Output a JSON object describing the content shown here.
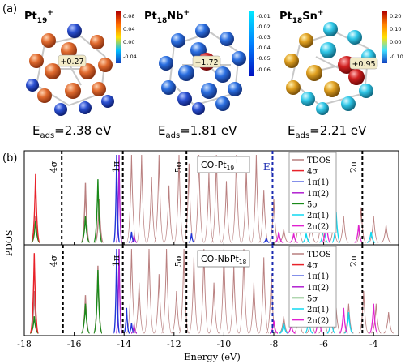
{
  "panel_a": {
    "label": "(a)",
    "clusters": [
      {
        "formula_main": "Pt",
        "formula_sub": "19",
        "formula_sup": "+",
        "formula_main2": "",
        "formula_sub2": "",
        "charge_label": "+0.27",
        "eads_prefix": "E",
        "eads_sub": "ads",
        "eads_value": "=2.38 eV",
        "colorbar_ticks": [
          "0.08",
          "0.04",
          "0.00",
          "-0.04"
        ],
        "colorbar_colors": [
          "#b00000",
          "#ff6a00",
          "#ffe000",
          "#00c0ff",
          "#1040c0"
        ],
        "atom_colors": [
          "#e06a2e",
          "#2a4fd0"
        ]
      },
      {
        "formula_main": "Pt",
        "formula_sub": "18",
        "formula_sup": "+",
        "formula_main2": "Nb",
        "formula_sub2": "",
        "charge_label": "+1.72",
        "eads_prefix": "E",
        "eads_sub": "ads",
        "eads_value": "=1.81 eV",
        "colorbar_ticks": [
          "-0.01",
          "-0.02",
          "-0.03",
          "-0.04",
          "-0.05",
          "-0.06"
        ],
        "colorbar_colors": [
          "#00e8ff",
          "#0080ff",
          "#0010c0"
        ],
        "atom_colors": [
          "#2a6ee0",
          "#1a2aa0"
        ]
      },
      {
        "formula_main": "Pt",
        "formula_sub": "18",
        "formula_sup": "+",
        "formula_main2": "Sn",
        "formula_sub2": "",
        "charge_label": "+0.95",
        "eads_prefix": "E",
        "eads_sub": "ads",
        "eads_value": "=2.21 eV",
        "colorbar_ticks": [
          "0.20",
          "0.10",
          "0.00",
          "-0.10"
        ],
        "colorbar_colors": [
          "#b00000",
          "#ff8000",
          "#ffe000",
          "#40e0ff",
          "#1040c0"
        ],
        "atom_colors": [
          "#e0a020",
          "#30c8e8"
        ]
      }
    ]
  },
  "panel_b": {
    "label": "(b)",
    "ylabel": "PDOS",
    "xlabel": "Energy (eV)"
  },
  "chart_data": {
    "type": "line",
    "xlim": [
      -18,
      -3
    ],
    "xticks": [
      -18,
      -16,
      -14,
      -12,
      -10,
      -8,
      -6,
      -4
    ],
    "xtick_labels": [
      "-18",
      "-16",
      "-14",
      "-12",
      "-10",
      "-8",
      "-6",
      "-4"
    ],
    "subplots": [
      {
        "name": "CO-Pt19+",
        "system_label_main": "CO-Pt",
        "system_label_sub": "19",
        "system_label_sup": "+",
        "legend": [
          "TDOS",
          "4σ",
          "1π(1)",
          "1π(2)",
          "5σ",
          "2π(1)",
          "2π(2)"
        ],
        "legend_colors": [
          "#b97f7f",
          "#e8222a",
          "#2034d8",
          "#b020d0",
          "#1a8a1a",
          "#10d8f0",
          "#e020d0"
        ],
        "annotations": [
          {
            "text": "4σ",
            "x": -16.5
          },
          {
            "text": "1π",
            "x": -14.0
          },
          {
            "text": "5σ",
            "x": -11.5
          },
          {
            "text": "2π",
            "x": -4.5
          },
          {
            "text": "E",
            "sub": "f",
            "x": -8.1
          }
        ],
        "dashed_lines_x": [
          -16.5,
          -14.05,
          -11.5,
          -8.05,
          -4.45
        ],
        "peaks": {
          "4σ": [
            {
              "x": -17.55,
              "h": 0.78
            }
          ],
          "4σ_tdos": [
            {
              "x": -17.55,
              "h": 0.3
            },
            {
              "x": -15.55,
              "h": 0.68
            },
            {
              "x": -15.0,
              "h": 0.5
            }
          ],
          "5σ": [
            {
              "x": -17.55,
              "h": 0.25
            },
            {
              "x": -15.55,
              "h": 0.3
            },
            {
              "x": -15.05,
              "h": 0.72
            }
          ],
          "1π(1)": [
            {
              "x": -14.3,
              "h": 1.0
            },
            {
              "x": -13.7,
              "h": 0.12
            },
            {
              "x": -11.3,
              "h": 0.1
            },
            {
              "x": -8.3,
              "h": 0.05
            }
          ],
          "1π(2)": [
            {
              "x": -14.2,
              "h": 1.0
            },
            {
              "x": -13.6,
              "h": 0.08
            }
          ],
          "2π(1)": [
            {
              "x": -6.7,
              "h": 0.1
            },
            {
              "x": -6.0,
              "h": 0.25
            },
            {
              "x": -5.5,
              "h": 0.35
            },
            {
              "x": -4.1,
              "h": 0.12
            }
          ],
          "2π(2)": [
            {
              "x": -7.8,
              "h": 0.12
            },
            {
              "x": -7.2,
              "h": 0.1
            },
            {
              "x": -5.9,
              "h": 0.3
            },
            {
              "x": -4.6,
              "h": 0.2
            }
          ],
          "TDOS": [
            {
              "x": -13.7,
              "h": 1.0
            },
            {
              "x": -13.3,
              "h": 1.0
            },
            {
              "x": -12.9,
              "h": 0.75
            },
            {
              "x": -12.6,
              "h": 1.0
            },
            {
              "x": -12.2,
              "h": 0.65
            },
            {
              "x": -11.8,
              "h": 1.0
            },
            {
              "x": -11.4,
              "h": 0.9
            },
            {
              "x": -11.0,
              "h": 1.0
            },
            {
              "x": -10.6,
              "h": 0.8
            },
            {
              "x": -10.3,
              "h": 1.0
            },
            {
              "x": -9.9,
              "h": 0.7
            },
            {
              "x": -9.5,
              "h": 1.0
            },
            {
              "x": -9.1,
              "h": 0.85
            },
            {
              "x": -8.7,
              "h": 1.0
            },
            {
              "x": -8.4,
              "h": 0.6
            },
            {
              "x": -8.0,
              "h": 0.5
            },
            {
              "x": -7.6,
              "h": 0.15
            },
            {
              "x": -7.0,
              "h": 0.3
            },
            {
              "x": -6.5,
              "h": 0.2
            },
            {
              "x": -6.1,
              "h": 0.35
            },
            {
              "x": -5.6,
              "h": 0.25
            },
            {
              "x": -5.2,
              "h": 0.3
            },
            {
              "x": -4.5,
              "h": 0.4
            },
            {
              "x": -4.0,
              "h": 0.3
            },
            {
              "x": -3.5,
              "h": 0.2
            }
          ]
        }
      },
      {
        "name": "CO-NbPt18+",
        "system_label_main": "CO-NbPt",
        "system_label_sub": "18",
        "system_label_sup": "+",
        "legend": [
          "TDOS",
          "4σ",
          "1π(1)",
          "1π(2)",
          "5σ",
          "2π(1)",
          "2π(2)"
        ],
        "legend_colors": [
          "#b97f7f",
          "#e8222a",
          "#2034d8",
          "#b020d0",
          "#1a8a1a",
          "#10d8f0",
          "#e020d0"
        ],
        "annotations": [
          {
            "text": "4σ",
            "x": -16.5
          },
          {
            "text": "1π",
            "x": -14.0
          },
          {
            "text": "5σ",
            "x": -11.5
          },
          {
            "text": "2π",
            "x": -4.5
          }
        ],
        "dashed_lines_x": [
          -16.45,
          -14.05,
          -11.5,
          -8.05,
          -4.45
        ],
        "peaks": {
          "4σ": [
            {
              "x": -17.6,
              "h": 0.95
            }
          ],
          "4σ_tdos": [
            {
              "x": -17.6,
              "h": 0.5
            },
            {
              "x": -15.55,
              "h": 0.45
            },
            {
              "x": -15.05,
              "h": 0.8
            }
          ],
          "5σ": [
            {
              "x": -17.6,
              "h": 0.2
            },
            {
              "x": -15.55,
              "h": 0.35
            },
            {
              "x": -15.05,
              "h": 0.75
            }
          ],
          "1π(1)": [
            {
              "x": -14.3,
              "h": 1.0
            },
            {
              "x": -13.9,
              "h": 0.3
            },
            {
              "x": -13.7,
              "h": 0.12
            }
          ],
          "1π(2)": [
            {
              "x": -14.2,
              "h": 1.0
            },
            {
              "x": -13.6,
              "h": 0.1
            }
          ],
          "2π(1)": [
            {
              "x": -7.6,
              "h": 0.12
            },
            {
              "x": -6.6,
              "h": 0.18
            },
            {
              "x": -5.7,
              "h": 0.2
            },
            {
              "x": -5.0,
              "h": 0.25
            }
          ],
          "2π(2)": [
            {
              "x": -8.0,
              "h": 0.15
            },
            {
              "x": -7.3,
              "h": 0.1
            },
            {
              "x": -6.2,
              "h": 0.3
            },
            {
              "x": -5.2,
              "h": 0.3
            },
            {
              "x": -4.0,
              "h": 0.35
            }
          ],
          "TDOS": [
            {
              "x": -13.7,
              "h": 1.0
            },
            {
              "x": -13.4,
              "h": 0.6
            },
            {
              "x": -13.0,
              "h": 1.0
            },
            {
              "x": -12.6,
              "h": 0.7
            },
            {
              "x": -12.3,
              "h": 1.0
            },
            {
              "x": -11.9,
              "h": 0.5
            },
            {
              "x": -11.6,
              "h": 1.0
            },
            {
              "x": -11.2,
              "h": 0.9
            },
            {
              "x": -10.8,
              "h": 1.0
            },
            {
              "x": -10.4,
              "h": 0.6
            },
            {
              "x": -10.0,
              "h": 1.0
            },
            {
              "x": -9.6,
              "h": 0.8
            },
            {
              "x": -9.2,
              "h": 1.0
            },
            {
              "x": -8.8,
              "h": 0.6
            },
            {
              "x": -8.4,
              "h": 0.9
            },
            {
              "x": -8.1,
              "h": 0.7
            },
            {
              "x": -7.6,
              "h": 0.2
            },
            {
              "x": -7.0,
              "h": 0.3
            },
            {
              "x": -6.5,
              "h": 0.25
            },
            {
              "x": -6.0,
              "h": 0.4
            },
            {
              "x": -5.5,
              "h": 0.3
            },
            {
              "x": -5.0,
              "h": 0.35
            },
            {
              "x": -4.4,
              "h": 0.5
            },
            {
              "x": -3.9,
              "h": 0.35
            },
            {
              "x": -3.4,
              "h": 0.25
            }
          ]
        }
      }
    ]
  }
}
